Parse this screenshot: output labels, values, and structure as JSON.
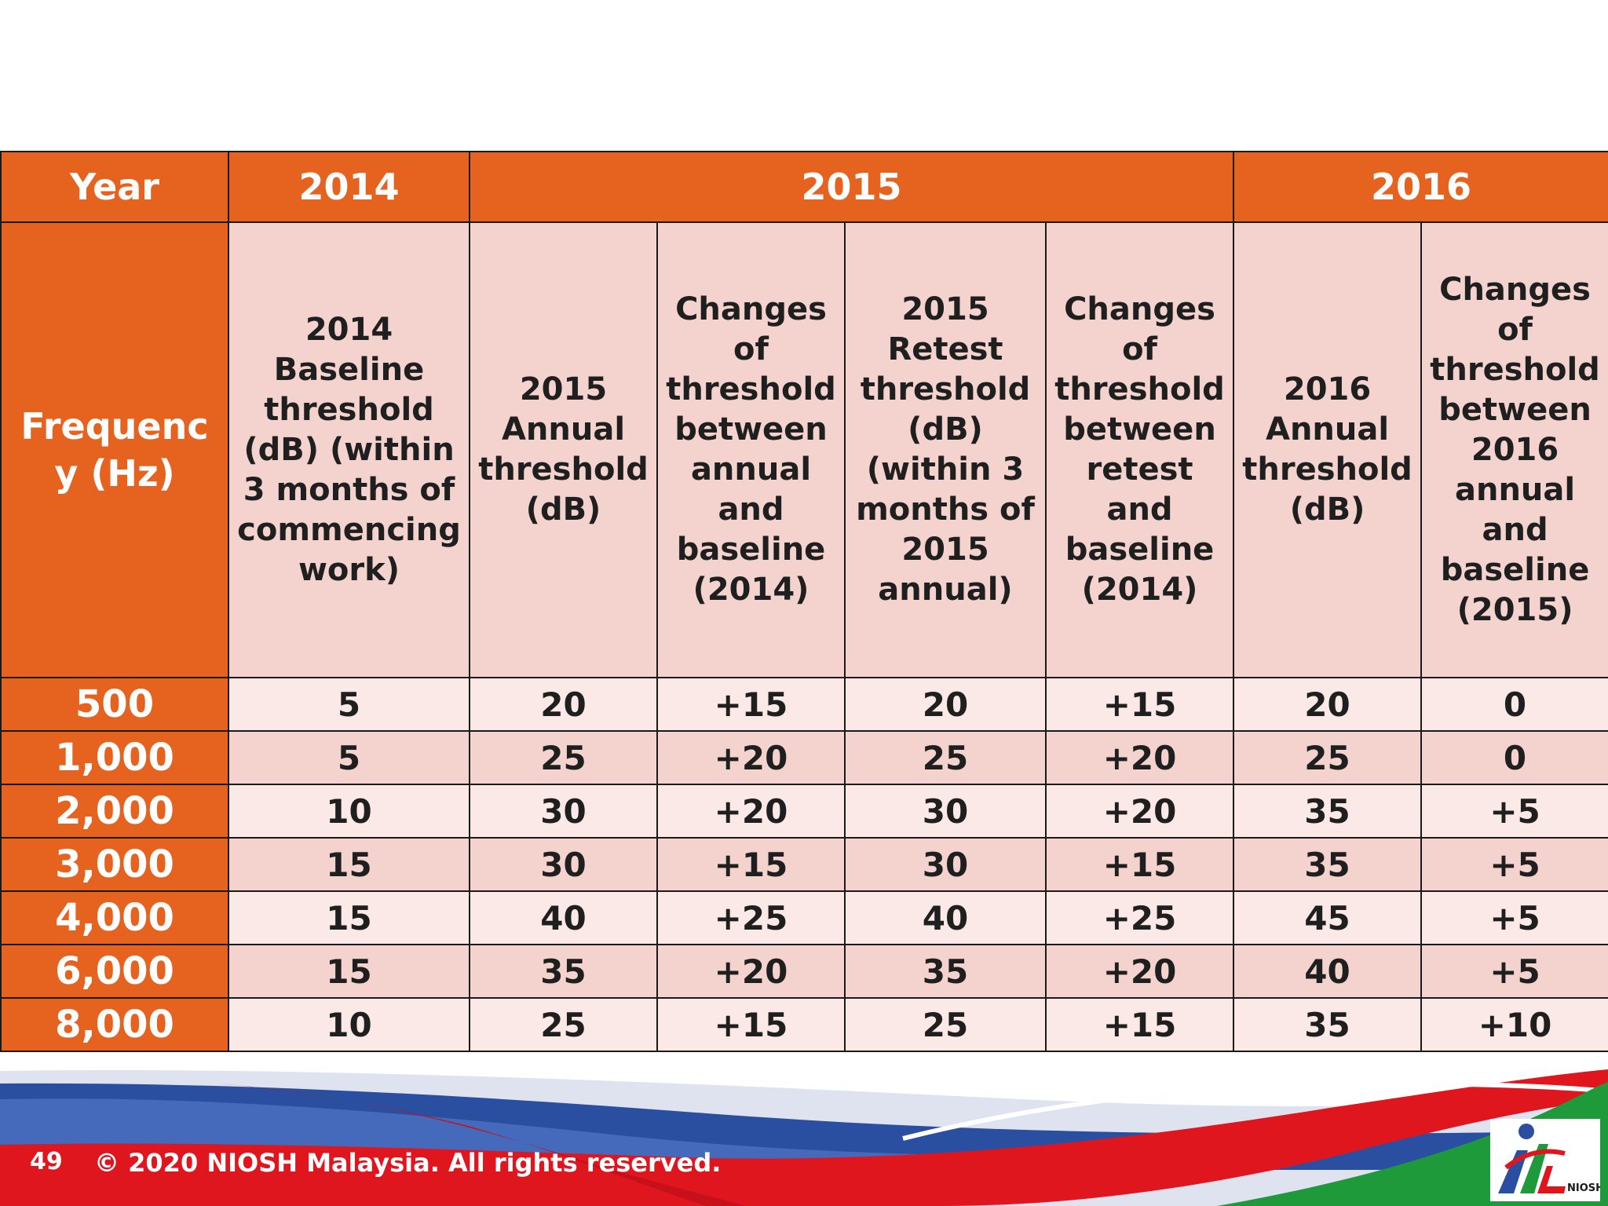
{
  "table": {
    "year_header_label": "Year",
    "years": [
      "2014",
      "2015",
      "2016"
    ],
    "frequency_header_label": "Frequency (Hz)",
    "column_headers": [
      "2014 Baseline threshold (dB) (within 3 months of commencing work)",
      "2015 Annual threshold (dB)",
      "Changes of threshold between annual and baseline (2014)",
      "2015 Retest threshold (dB) (within 3 months of 2015 annual)",
      "Changes of threshold between retest and baseline (2014)",
      "2016 Annual threshold (dB)",
      "Changes of threshold between 2016 annual and baseline (2015)"
    ],
    "rows": [
      {
        "frequency": "500",
        "values": [
          "5",
          "20",
          "+15",
          "20",
          "+15",
          "20",
          "0"
        ]
      },
      {
        "frequency": "1,000",
        "values": [
          "5",
          "25",
          "+20",
          "25",
          "+20",
          "25",
          "0"
        ]
      },
      {
        "frequency": "2,000",
        "values": [
          "10",
          "30",
          "+20",
          "30",
          "+20",
          "35",
          "+5"
        ]
      },
      {
        "frequency": "3,000",
        "values": [
          "15",
          "30",
          "+15",
          "30",
          "+15",
          "35",
          "+5"
        ]
      },
      {
        "frequency": "4,000",
        "values": [
          "15",
          "40",
          "+25",
          "40",
          "+25",
          "45",
          "+5"
        ]
      },
      {
        "frequency": "6,000",
        "values": [
          "15",
          "35",
          "+20",
          "35",
          "+20",
          "40",
          "+5"
        ]
      },
      {
        "frequency": "8,000",
        "values": [
          "10",
          "25",
          "+15",
          "25",
          "+15",
          "35",
          "+10"
        ]
      }
    ]
  },
  "footer": {
    "page_number": "49",
    "copyright": "© 2020 NIOSH Malaysia. All rights reserved.",
    "logo_text": "NIOSH"
  },
  "colors": {
    "header_orange": "#E5621F",
    "cell_pink_dark": "#F4D3CF",
    "cell_pink_light": "#FAE9E7",
    "footer_red": "#E0161F",
    "footer_blue": "#2B4FA0",
    "footer_green": "#1E9A3A"
  }
}
